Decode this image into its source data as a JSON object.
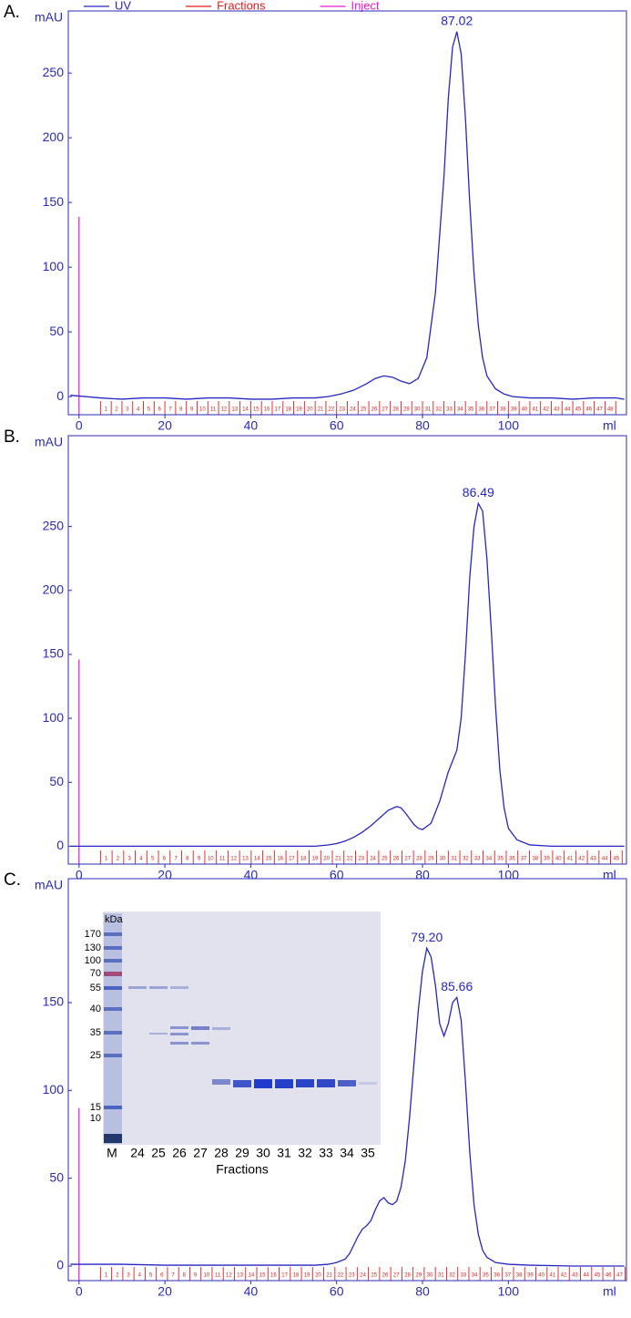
{
  "chart_data": [
    {
      "type": "line",
      "label": "A.",
      "ylabel": "mAU",
      "xlabel": "ml",
      "legend": "top",
      "xlim": [
        -2.5,
        127.5
      ],
      "ylim": [
        -14,
        298
      ],
      "xticks": [
        0,
        20,
        40,
        60,
        80,
        100
      ],
      "yticks": [
        0,
        50,
        100,
        150,
        200,
        250
      ],
      "series": [
        {
          "name": "UV",
          "color": "#2626c4",
          "x": [
            -2,
            5,
            10,
            15,
            20,
            25,
            30,
            35,
            40,
            45,
            50,
            55,
            58,
            61,
            64,
            67,
            69,
            71,
            73,
            75,
            77,
            79,
            81,
            83,
            85,
            86,
            87,
            88,
            89,
            90,
            91,
            92,
            93,
            94,
            95,
            97,
            99,
            101,
            105,
            110,
            115,
            120,
            125,
            127
          ],
          "values": [
            1,
            -1,
            -2,
            -1,
            -1,
            -2,
            -1,
            -1,
            -2,
            -2,
            -1,
            -1,
            0,
            2,
            5,
            10,
            14,
            16,
            15,
            12,
            10,
            14,
            30,
            80,
            170,
            230,
            270,
            282,
            265,
            215,
            150,
            95,
            55,
            30,
            16,
            6,
            2,
            0,
            -1,
            -1,
            -2,
            -1,
            -1,
            -2
          ]
        }
      ],
      "fractions": {
        "name": "Fractions",
        "color": "#e31c1c",
        "bins": [
          5,
          7.5,
          10,
          12.5,
          15,
          17.5,
          20,
          22.5,
          25,
          27.5,
          30,
          32.5,
          35,
          37.5,
          40,
          42.5,
          45,
          47.5,
          50,
          52.5,
          55,
          57.5,
          60,
          62.5,
          65,
          67.5,
          70,
          72.5,
          75,
          77.5,
          80,
          82.5,
          85,
          87.5,
          90,
          92.5,
          95,
          97.5,
          100,
          102.5,
          105,
          107.5,
          110,
          112.5,
          115,
          117.5,
          120,
          122.5,
          125
        ],
        "labels": [
          1,
          2,
          3,
          4,
          5,
          6,
          7,
          8,
          9,
          10,
          11,
          12,
          13,
          14,
          15,
          16,
          17,
          18,
          19,
          20,
          21,
          22,
          23,
          24,
          25,
          26,
          27,
          28,
          29,
          30,
          31,
          32,
          33,
          34,
          35,
          36,
          37,
          38,
          39,
          40,
          41,
          42,
          43,
          44,
          45,
          46,
          47,
          48
        ]
      },
      "inject": {
        "name": "Inject",
        "color": "#e61ad2",
        "x": 0,
        "y": 139
      },
      "annotations": [
        "87.02"
      ]
    },
    {
      "type": "line",
      "label": "B.",
      "ylabel": "mAU",
      "xlabel": "ml",
      "xlim": [
        -2.5,
        127.5
      ],
      "ylim": [
        -14,
        321
      ],
      "xticks": [
        0,
        20,
        40,
        60,
        80,
        100
      ],
      "yticks": [
        0,
        50,
        100,
        150,
        200,
        250
      ],
      "series": [
        {
          "color": "#2626c4",
          "x": [
            -2,
            5,
            10,
            20,
            30,
            40,
            50,
            55,
            58,
            60,
            62,
            64,
            66,
            68,
            70,
            72,
            74,
            75,
            76,
            78,
            79,
            80,
            82,
            84,
            86,
            88,
            89,
            90,
            91,
            92,
            93,
            94,
            95,
            96,
            97,
            98,
            99,
            100,
            102,
            105,
            110,
            120,
            127
          ],
          "values": [
            0,
            0,
            0,
            0,
            0,
            0,
            0,
            0,
            1,
            2,
            4,
            7,
            11,
            16,
            22,
            28,
            31,
            30,
            26,
            17,
            14,
            13,
            18,
            35,
            58,
            75,
            100,
            150,
            210,
            250,
            268,
            262,
            225,
            170,
            110,
            60,
            30,
            14,
            5,
            1,
            0,
            0,
            0
          ]
        }
      ],
      "fractions": {
        "color": "#e31c1c",
        "bins": [
          5,
          7.7,
          10.4,
          13.1,
          15.8,
          18.5,
          21.2,
          23.9,
          26.6,
          29.3,
          32,
          34.7,
          37.4,
          40.1,
          42.8,
          45.5,
          48.2,
          50.9,
          53.6,
          56.3,
          59,
          61.7,
          64.4,
          67.1,
          69.8,
          72.5,
          75.2,
          77.9,
          80.6,
          83.3,
          86,
          88.7,
          91.4,
          94.1,
          96.8,
          99.5,
          102.2,
          104.9,
          107.6,
          110.3,
          113,
          115.7,
          118.4,
          121.1,
          123.8,
          126.5
        ],
        "labels": [
          1,
          2,
          3,
          4,
          5,
          6,
          7,
          8,
          9,
          10,
          11,
          12,
          13,
          14,
          15,
          16,
          17,
          18,
          19,
          20,
          21,
          22,
          23,
          24,
          25,
          26,
          27,
          28,
          29,
          30,
          31,
          32,
          33,
          34,
          35,
          36,
          37,
          38,
          39,
          40,
          41,
          42,
          43,
          44,
          45
        ]
      },
      "inject": {
        "color": "#e61ad2",
        "x": 0,
        "y": 146
      },
      "annotations": [
        "86.49"
      ]
    },
    {
      "type": "line",
      "label": "C.",
      "ylabel": "mAU",
      "xlabel": "ml",
      "xlim": [
        -2.5,
        127.5
      ],
      "ylim": [
        -8.3,
        220.6
      ],
      "xticks": [
        0,
        20,
        40,
        60,
        80,
        100
      ],
      "yticks": [
        0,
        50,
        100,
        150
      ],
      "series": [
        {
          "color": "#2626c4",
          "x": [
            -2,
            5,
            10,
            20,
            30,
            40,
            50,
            55,
            58,
            60,
            62,
            63,
            64,
            65,
            66,
            67,
            68,
            69,
            70,
            71,
            72,
            73,
            74,
            75,
            76,
            77,
            78,
            79,
            80,
            81,
            82,
            83,
            84,
            85,
            86,
            87,
            88,
            89,
            90,
            91,
            92,
            93,
            94,
            95,
            97,
            100,
            105,
            115,
            127
          ],
          "values": [
            1,
            1,
            1,
            0.5,
            0.5,
            0.5,
            0.5,
            0.5,
            1,
            2,
            4,
            7,
            12,
            17,
            21,
            23,
            26,
            32,
            37,
            39,
            36,
            35,
            37,
            45,
            60,
            85,
            115,
            145,
            168,
            181,
            176,
            160,
            138,
            131,
            138,
            150,
            153,
            140,
            105,
            65,
            35,
            18,
            9,
            5,
            2,
            1,
            0.5,
            0,
            0
          ]
        }
      ],
      "fractions": {
        "color": "#e31c1c",
        "bins": [
          5,
          7.6,
          10.2,
          12.8,
          15.4,
          18,
          20.6,
          23.2,
          25.8,
          28.4,
          31,
          33.6,
          36.2,
          38.8,
          41.4,
          44,
          46.6,
          49.2,
          51.8,
          54.4,
          57,
          59.6,
          62.2,
          64.8,
          67.4,
          70,
          72.6,
          75.2,
          77.8,
          80.4,
          83,
          85.6,
          88.2,
          90.8,
          93.4,
          96,
          98.6,
          101.2,
          103.8,
          106.4,
          109,
          111.6,
          114.2,
          116.8,
          119.4,
          122,
          124.6,
          127.2
        ],
        "labels": [
          1,
          2,
          3,
          4,
          5,
          6,
          7,
          8,
          9,
          10,
          11,
          12,
          13,
          14,
          15,
          16,
          17,
          18,
          19,
          20,
          21,
          22,
          23,
          24,
          25,
          26,
          27,
          28,
          29,
          30,
          31,
          32,
          33,
          34,
          35,
          36,
          37,
          38,
          39,
          40,
          41,
          42,
          43,
          44,
          45,
          46,
          47
        ]
      },
      "inject": {
        "color": "#e61ad2",
        "x": 0,
        "y": 90
      },
      "annotations": [
        "79.20",
        "85.66"
      ],
      "inset": {
        "ylabel": "kDa",
        "markers": [
          "170",
          "130",
          "100",
          "70",
          "55",
          "40",
          "35",
          "25",
          "15",
          "10"
        ],
        "lanes": [
          "M",
          "24",
          "25",
          "26",
          "27",
          "28",
          "29",
          "30",
          "31",
          "32",
          "33",
          "34",
          "35"
        ],
        "xlabel": "Fractions"
      }
    }
  ]
}
